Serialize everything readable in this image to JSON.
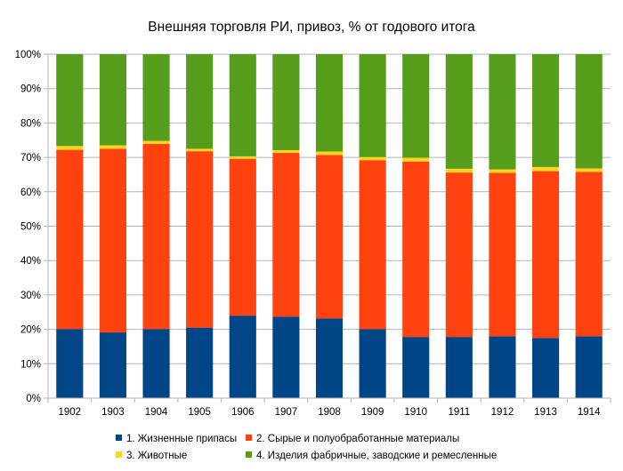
{
  "chart_data": {
    "type": "bar",
    "stacked": true,
    "percent_stacked": true,
    "title": "Внешняя торговля РИ, привоз, % от годового итога",
    "xlabel": "",
    "ylabel": "",
    "ylim": [
      0,
      100
    ],
    "y_ticks": [
      "0%",
      "10%",
      "20%",
      "30%",
      "40%",
      "50%",
      "60%",
      "70%",
      "80%",
      "90%",
      "100%"
    ],
    "grid": true,
    "legend_position": "bottom",
    "categories": [
      "1902",
      "1903",
      "1904",
      "1905",
      "1906",
      "1907",
      "1908",
      "1909",
      "1910",
      "1911",
      "1912",
      "1913",
      "1914"
    ],
    "series": [
      {
        "name": "1. Жизненные припасы",
        "color": "#004586",
        "values": [
          20.1,
          19.1,
          20.1,
          20.5,
          24.0,
          23.7,
          23.2,
          20.1,
          17.8,
          17.8,
          18.0,
          17.5,
          18.0
        ]
      },
      {
        "name": "2. Сырые и полуобработанные материалы",
        "color": "#ff420e",
        "values": [
          52.1,
          53.4,
          53.8,
          51.3,
          45.6,
          47.6,
          47.5,
          49.1,
          51.0,
          47.8,
          47.5,
          48.5,
          47.8
        ]
      },
      {
        "name": "3. Животные",
        "color": "#ffd320",
        "values": [
          1.1,
          1.0,
          0.9,
          0.7,
          0.7,
          0.8,
          1.0,
          0.9,
          1.1,
          1.1,
          1.0,
          1.2,
          1.0
        ]
      },
      {
        "name": "4. Изделия фабричные, заводские и ремесленные",
        "color": "#579d1c",
        "values": [
          26.7,
          26.5,
          25.2,
          27.5,
          29.7,
          27.9,
          28.3,
          29.9,
          30.1,
          33.3,
          33.5,
          32.8,
          33.2
        ]
      }
    ]
  }
}
